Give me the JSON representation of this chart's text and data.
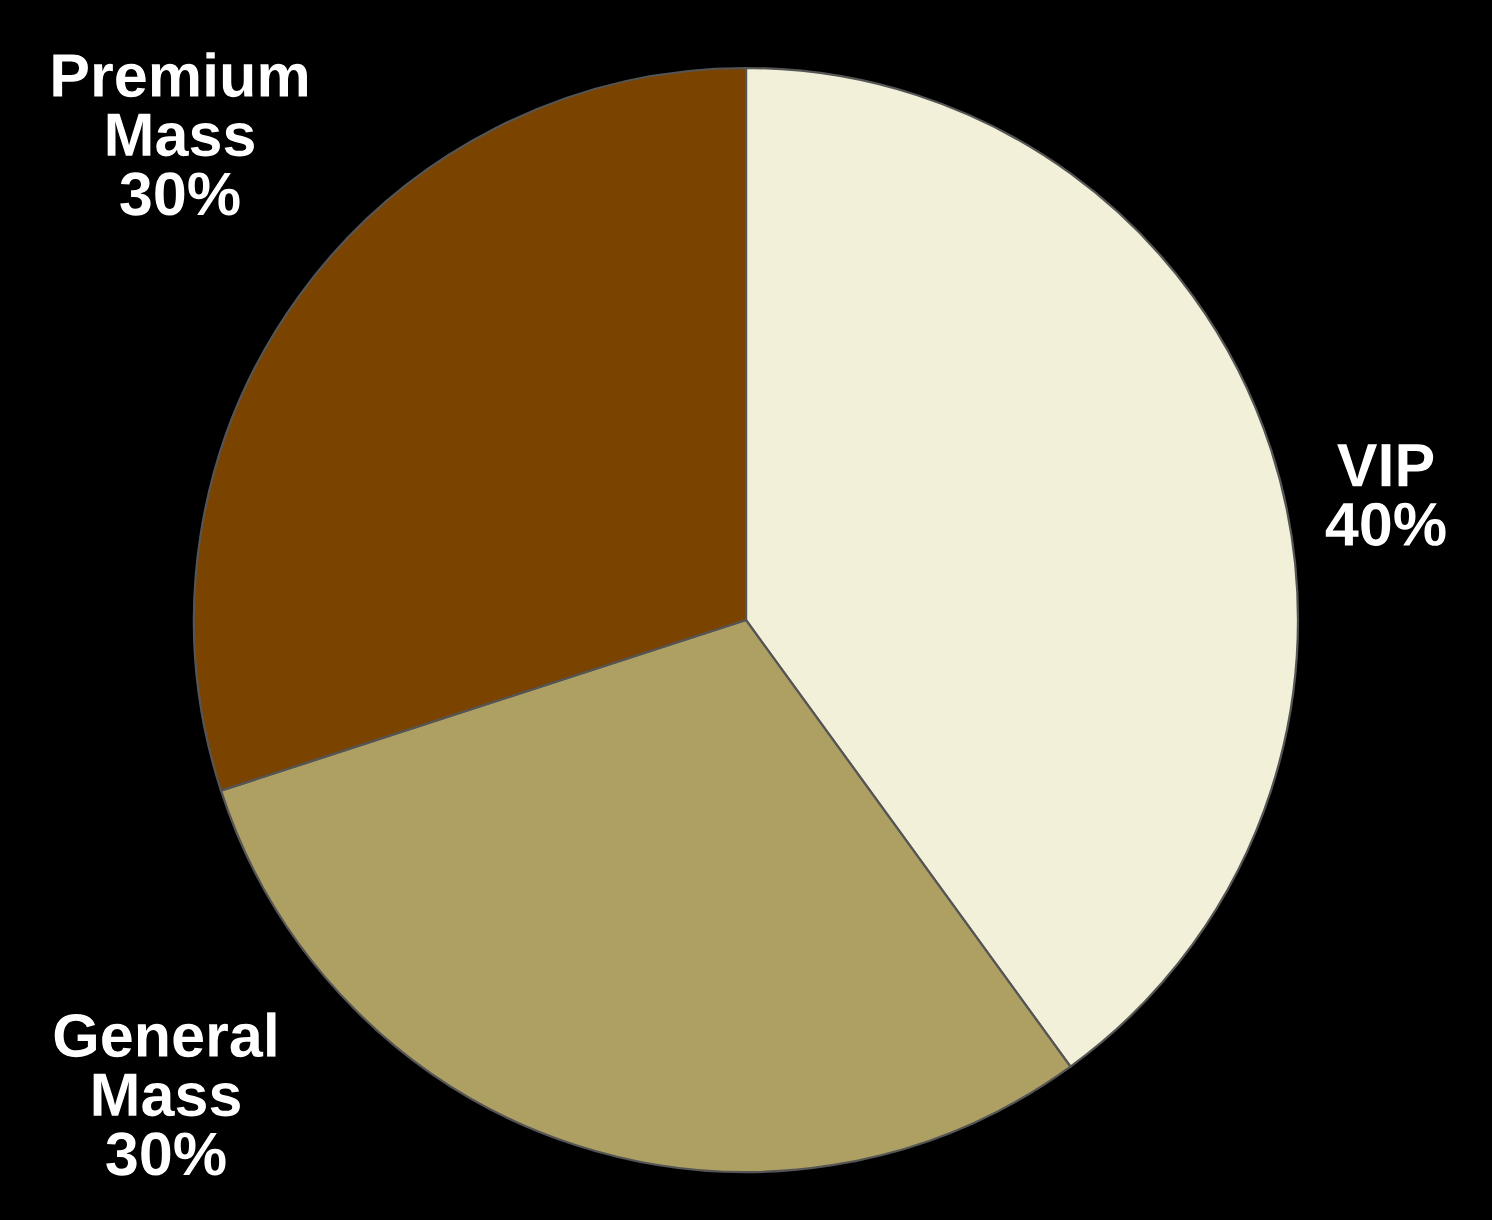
{
  "chart_data": {
    "type": "pie",
    "categories": [
      "VIP",
      "General Mass",
      "Premium Mass"
    ],
    "values": [
      40,
      30,
      30
    ],
    "value_labels": [
      "40%",
      "30%",
      "30%"
    ],
    "colors": [
      "#f2f0d8",
      "#ae9f63",
      "#7a4300"
    ]
  }
}
